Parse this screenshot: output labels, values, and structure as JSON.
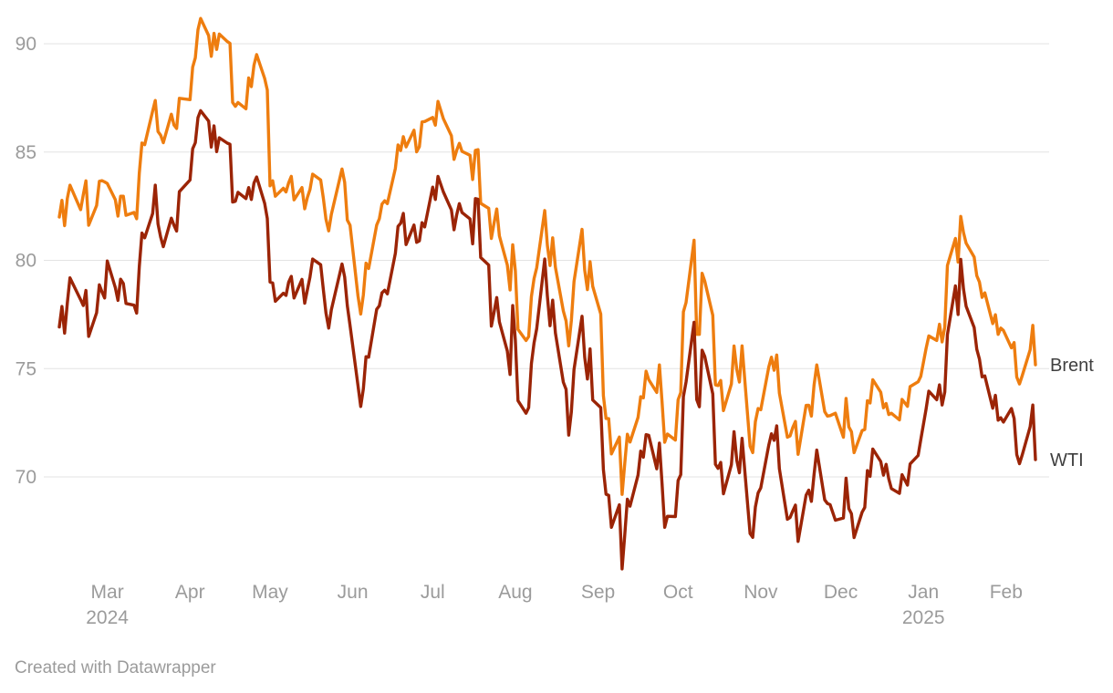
{
  "chart_data": {
    "type": "line",
    "title": "",
    "xlabel": "",
    "ylabel": "",
    "grid": "horizontal",
    "legend_position": "right-of-line-ends",
    "y_ticks": [
      70,
      75,
      80,
      85,
      90
    ],
    "ylim": [
      65.5,
      91.5
    ],
    "x_tick_labels": [
      {
        "label": "Mar",
        "sub": "2024",
        "date": "2024-03-01"
      },
      {
        "label": "Apr",
        "date": "2024-04-01"
      },
      {
        "label": "May",
        "date": "2024-05-01"
      },
      {
        "label": "Jun",
        "date": "2024-06-01"
      },
      {
        "label": "Jul",
        "date": "2024-07-01"
      },
      {
        "label": "Aug",
        "date": "2024-08-01"
      },
      {
        "label": "Sep",
        "date": "2024-09-01"
      },
      {
        "label": "Oct",
        "date": "2024-10-01"
      },
      {
        "label": "Nov",
        "date": "2024-11-01"
      },
      {
        "label": "Dec",
        "date": "2024-12-01"
      },
      {
        "label": "Jan",
        "sub": "2025",
        "date": "2025-01-01"
      },
      {
        "label": "Feb",
        "date": "2025-02-01"
      }
    ],
    "series": [
      {
        "name": "Brent",
        "color": "#ee7d0f",
        "column": 1
      },
      {
        "name": "WTI",
        "color": "#9b2406",
        "column": 2
      }
    ],
    "columns": [
      "date",
      "Brent",
      "WTI"
    ],
    "rows": [
      [
        "2024-02-12",
        82.0,
        76.92
      ],
      [
        "2024-02-13",
        82.77,
        77.87
      ],
      [
        "2024-02-14",
        81.6,
        76.64
      ],
      [
        "2024-02-15",
        82.86,
        78.03
      ],
      [
        "2024-02-16",
        83.47,
        79.19
      ],
      [
        "2024-02-20",
        82.34,
        78.18
      ],
      [
        "2024-02-21",
        83.03,
        77.91
      ],
      [
        "2024-02-22",
        83.67,
        78.61
      ],
      [
        "2024-02-23",
        81.62,
        76.49
      ],
      [
        "2024-02-26",
        82.53,
        77.58
      ],
      [
        "2024-02-27",
        83.65,
        78.87
      ],
      [
        "2024-02-28",
        83.68,
        78.54
      ],
      [
        "2024-02-29",
        83.62,
        78.26
      ],
      [
        "2024-03-01",
        83.55,
        79.97
      ],
      [
        "2024-03-04",
        82.8,
        78.74
      ],
      [
        "2024-03-05",
        82.04,
        78.15
      ],
      [
        "2024-03-06",
        82.96,
        79.13
      ],
      [
        "2024-03-07",
        82.96,
        78.93
      ],
      [
        "2024-03-08",
        82.08,
        78.01
      ],
      [
        "2024-03-11",
        82.21,
        77.93
      ],
      [
        "2024-03-12",
        81.92,
        77.56
      ],
      [
        "2024-03-13",
        84.03,
        79.72
      ],
      [
        "2024-03-14",
        85.42,
        81.26
      ],
      [
        "2024-03-15",
        85.34,
        81.04
      ],
      [
        "2024-03-18",
        86.89,
        82.16
      ],
      [
        "2024-03-19",
        87.38,
        83.47
      ],
      [
        "2024-03-20",
        85.95,
        81.68
      ],
      [
        "2024-03-21",
        85.78,
        81.07
      ],
      [
        "2024-03-22",
        85.43,
        80.63
      ],
      [
        "2024-03-25",
        86.75,
        81.95
      ],
      [
        "2024-03-26",
        86.25,
        81.62
      ],
      [
        "2024-03-27",
        86.09,
        81.35
      ],
      [
        "2024-03-28",
        87.48,
        83.17
      ],
      [
        "2024-04-01",
        87.42,
        83.71
      ],
      [
        "2024-04-02",
        88.92,
        85.15
      ],
      [
        "2024-04-03",
        89.35,
        85.43
      ],
      [
        "2024-04-04",
        90.65,
        86.59
      ],
      [
        "2024-04-05",
        91.17,
        86.91
      ],
      [
        "2024-04-08",
        90.38,
        86.43
      ],
      [
        "2024-04-09",
        89.42,
        85.23
      ],
      [
        "2024-04-10",
        90.48,
        86.21
      ],
      [
        "2024-04-11",
        89.74,
        85.02
      ],
      [
        "2024-04-12",
        90.45,
        85.66
      ],
      [
        "2024-04-15",
        90.1,
        85.41
      ],
      [
        "2024-04-16",
        90.02,
        85.36
      ],
      [
        "2024-04-17",
        87.29,
        82.69
      ],
      [
        "2024-04-18",
        87.11,
        82.73
      ],
      [
        "2024-04-19",
        87.29,
        83.14
      ],
      [
        "2024-04-22",
        87.0,
        82.85
      ],
      [
        "2024-04-23",
        88.42,
        83.36
      ],
      [
        "2024-04-24",
        88.02,
        82.81
      ],
      [
        "2024-04-25",
        89.01,
        83.57
      ],
      [
        "2024-04-26",
        89.5,
        83.85
      ],
      [
        "2024-04-29",
        88.4,
        82.63
      ],
      [
        "2024-04-30",
        87.86,
        81.93
      ],
      [
        "2024-05-01",
        83.44,
        79.0
      ],
      [
        "2024-05-02",
        83.67,
        78.95
      ],
      [
        "2024-05-03",
        82.96,
        78.11
      ],
      [
        "2024-05-06",
        83.33,
        78.48
      ],
      [
        "2024-05-07",
        83.16,
        78.38
      ],
      [
        "2024-05-08",
        83.58,
        78.99
      ],
      [
        "2024-05-09",
        83.88,
        79.26
      ],
      [
        "2024-05-10",
        82.79,
        78.26
      ],
      [
        "2024-05-13",
        83.36,
        79.12
      ],
      [
        "2024-05-14",
        82.38,
        78.02
      ],
      [
        "2024-05-15",
        82.9,
        78.63
      ],
      [
        "2024-05-16",
        83.27,
        79.23
      ],
      [
        "2024-05-17",
        83.98,
        80.06
      ],
      [
        "2024-05-20",
        83.71,
        79.8
      ],
      [
        "2024-05-21",
        82.88,
        78.66
      ],
      [
        "2024-05-22",
        81.9,
        77.57
      ],
      [
        "2024-05-23",
        81.36,
        76.87
      ],
      [
        "2024-05-24",
        82.12,
        77.72
      ],
      [
        "2024-05-28",
        84.22,
        79.83
      ],
      [
        "2024-05-29",
        83.6,
        79.23
      ],
      [
        "2024-05-30",
        81.86,
        77.91
      ],
      [
        "2024-05-31",
        81.62,
        76.99
      ],
      [
        "2024-06-03",
        78.36,
        74.22
      ],
      [
        "2024-06-04",
        77.52,
        73.25
      ],
      [
        "2024-06-05",
        78.41,
        74.07
      ],
      [
        "2024-06-06",
        79.87,
        75.55
      ],
      [
        "2024-06-07",
        79.62,
        75.53
      ],
      [
        "2024-06-10",
        81.63,
        77.74
      ],
      [
        "2024-06-11",
        81.92,
        77.9
      ],
      [
        "2024-06-12",
        82.6,
        78.5
      ],
      [
        "2024-06-13",
        82.75,
        78.62
      ],
      [
        "2024-06-14",
        82.62,
        78.45
      ],
      [
        "2024-06-17",
        84.25,
        80.33
      ],
      [
        "2024-06-18",
        85.33,
        81.57
      ],
      [
        "2024-06-19",
        85.07,
        81.71
      ],
      [
        "2024-06-20",
        85.71,
        82.17
      ],
      [
        "2024-06-21",
        85.24,
        80.73
      ],
      [
        "2024-06-24",
        86.01,
        81.63
      ],
      [
        "2024-06-25",
        85.01,
        80.83
      ],
      [
        "2024-06-26",
        85.25,
        80.9
      ],
      [
        "2024-06-27",
        86.39,
        81.74
      ],
      [
        "2024-06-28",
        86.41,
        81.54
      ],
      [
        "2024-07-01",
        86.6,
        83.38
      ],
      [
        "2024-07-02",
        86.24,
        82.81
      ],
      [
        "2024-07-03",
        87.34,
        83.88
      ],
      [
        "2024-07-05",
        86.54,
        83.16
      ],
      [
        "2024-07-08",
        85.75,
        82.33
      ],
      [
        "2024-07-09",
        84.66,
        81.41
      ],
      [
        "2024-07-10",
        85.08,
        82.1
      ],
      [
        "2024-07-11",
        85.4,
        82.62
      ],
      [
        "2024-07-12",
        85.03,
        82.21
      ],
      [
        "2024-07-15",
        84.85,
        81.91
      ],
      [
        "2024-07-16",
        83.73,
        80.76
      ],
      [
        "2024-07-17",
        85.08,
        82.85
      ],
      [
        "2024-07-18",
        85.11,
        82.82
      ],
      [
        "2024-07-19",
        82.63,
        80.13
      ],
      [
        "2024-07-22",
        82.4,
        79.78
      ],
      [
        "2024-07-23",
        81.01,
        76.96
      ],
      [
        "2024-07-24",
        81.71,
        77.59
      ],
      [
        "2024-07-25",
        82.37,
        78.28
      ],
      [
        "2024-07-26",
        81.13,
        77.16
      ],
      [
        "2024-07-29",
        79.78,
        75.81
      ],
      [
        "2024-07-30",
        78.63,
        74.73
      ],
      [
        "2024-07-31",
        80.72,
        77.91
      ],
      [
        "2024-08-01",
        79.52,
        76.31
      ],
      [
        "2024-08-02",
        76.81,
        73.52
      ],
      [
        "2024-08-05",
        76.3,
        72.94
      ],
      [
        "2024-08-06",
        76.48,
        73.2
      ],
      [
        "2024-08-07",
        78.33,
        75.23
      ],
      [
        "2024-08-08",
        79.16,
        76.19
      ],
      [
        "2024-08-09",
        79.66,
        76.84
      ],
      [
        "2024-08-12",
        82.3,
        80.06
      ],
      [
        "2024-08-13",
        80.69,
        78.35
      ],
      [
        "2024-08-14",
        79.76,
        76.98
      ],
      [
        "2024-08-15",
        81.04,
        78.16
      ],
      [
        "2024-08-16",
        79.68,
        76.65
      ],
      [
        "2024-08-19",
        77.66,
        74.37
      ],
      [
        "2024-08-20",
        77.2,
        74.04
      ],
      [
        "2024-08-21",
        76.05,
        71.93
      ],
      [
        "2024-08-22",
        77.22,
        73.01
      ],
      [
        "2024-08-23",
        79.02,
        74.96
      ],
      [
        "2024-08-26",
        81.43,
        77.42
      ],
      [
        "2024-08-27",
        79.55,
        75.53
      ],
      [
        "2024-08-28",
        78.65,
        74.52
      ],
      [
        "2024-08-29",
        79.94,
        75.91
      ],
      [
        "2024-08-30",
        78.8,
        73.55
      ],
      [
        "2024-09-02",
        77.52,
        73.2
      ],
      [
        "2024-09-03",
        73.75,
        70.34
      ],
      [
        "2024-09-04",
        72.7,
        69.2
      ],
      [
        "2024-09-05",
        72.69,
        69.15
      ],
      [
        "2024-09-06",
        71.06,
        67.67
      ],
      [
        "2024-09-09",
        71.84,
        68.71
      ],
      [
        "2024-09-10",
        69.19,
        65.75
      ],
      [
        "2024-09-11",
        70.61,
        67.31
      ],
      [
        "2024-09-12",
        71.97,
        68.97
      ],
      [
        "2024-09-13",
        71.61,
        68.65
      ],
      [
        "2024-09-16",
        72.75,
        70.09
      ],
      [
        "2024-09-17",
        73.7,
        71.19
      ],
      [
        "2024-09-18",
        73.65,
        70.91
      ],
      [
        "2024-09-19",
        74.88,
        71.95
      ],
      [
        "2024-09-20",
        74.49,
        71.92
      ],
      [
        "2024-09-23",
        73.9,
        70.37
      ],
      [
        "2024-09-24",
        75.17,
        71.56
      ],
      [
        "2024-09-25",
        73.46,
        69.69
      ],
      [
        "2024-09-26",
        71.6,
        67.67
      ],
      [
        "2024-09-27",
        71.98,
        68.18
      ],
      [
        "2024-09-30",
        71.7,
        68.17
      ],
      [
        "2024-10-01",
        73.56,
        69.83
      ],
      [
        "2024-10-02",
        73.9,
        70.1
      ],
      [
        "2024-10-03",
        77.62,
        73.71
      ],
      [
        "2024-10-04",
        78.05,
        74.38
      ],
      [
        "2024-10-07",
        80.93,
        77.14
      ],
      [
        "2024-10-08",
        76.58,
        73.57
      ],
      [
        "2024-10-09",
        76.58,
        73.24
      ],
      [
        "2024-10-10",
        79.4,
        75.85
      ],
      [
        "2024-10-11",
        79.04,
        75.56
      ],
      [
        "2024-10-14",
        77.46,
        73.83
      ],
      [
        "2024-10-15",
        74.25,
        70.58
      ],
      [
        "2024-10-16",
        74.22,
        70.39
      ],
      [
        "2024-10-17",
        74.45,
        70.67
      ],
      [
        "2024-10-18",
        73.06,
        69.22
      ],
      [
        "2024-10-21",
        74.29,
        70.56
      ],
      [
        "2024-10-22",
        76.04,
        72.09
      ],
      [
        "2024-10-23",
        74.96,
        70.77
      ],
      [
        "2024-10-24",
        74.38,
        70.19
      ],
      [
        "2024-10-25",
        76.05,
        71.78
      ],
      [
        "2024-10-28",
        71.42,
        67.38
      ],
      [
        "2024-10-29",
        71.12,
        67.21
      ],
      [
        "2024-10-30",
        72.55,
        68.61
      ],
      [
        "2024-10-31",
        73.16,
        69.26
      ],
      [
        "2024-11-01",
        73.1,
        69.49
      ],
      [
        "2024-11-04",
        75.08,
        71.47
      ],
      [
        "2024-11-05",
        75.53,
        71.99
      ],
      [
        "2024-11-06",
        74.92,
        71.69
      ],
      [
        "2024-11-07",
        75.63,
        72.36
      ],
      [
        "2024-11-08",
        73.87,
        70.38
      ],
      [
        "2024-11-11",
        71.83,
        68.04
      ],
      [
        "2024-11-12",
        71.89,
        68.12
      ],
      [
        "2024-11-13",
        72.28,
        68.43
      ],
      [
        "2024-11-14",
        72.56,
        68.7
      ],
      [
        "2024-11-15",
        71.04,
        67.02
      ],
      [
        "2024-11-18",
        73.3,
        69.16
      ],
      [
        "2024-11-19",
        73.31,
        69.39
      ],
      [
        "2024-11-20",
        72.81,
        68.87
      ],
      [
        "2024-11-21",
        74.23,
        70.1
      ],
      [
        "2024-11-22",
        75.17,
        71.24
      ],
      [
        "2024-11-25",
        73.01,
        68.94
      ],
      [
        "2024-11-26",
        72.81,
        68.77
      ],
      [
        "2024-11-27",
        72.83,
        68.72
      ],
      [
        "2024-11-29",
        72.94,
        68.0
      ],
      [
        "2024-12-02",
        71.83,
        68.1
      ],
      [
        "2024-12-03",
        73.62,
        69.94
      ],
      [
        "2024-12-04",
        72.31,
        68.54
      ],
      [
        "2024-12-05",
        72.09,
        68.3
      ],
      [
        "2024-12-06",
        71.12,
        67.2
      ],
      [
        "2024-12-09",
        72.14,
        68.37
      ],
      [
        "2024-12-10",
        72.19,
        68.59
      ],
      [
        "2024-12-11",
        73.52,
        70.29
      ],
      [
        "2024-12-12",
        73.41,
        70.02
      ],
      [
        "2024-12-13",
        74.49,
        71.29
      ],
      [
        "2024-12-16",
        73.91,
        70.71
      ],
      [
        "2024-12-17",
        73.19,
        70.08
      ],
      [
        "2024-12-18",
        73.39,
        70.58
      ],
      [
        "2024-12-19",
        72.88,
        69.91
      ],
      [
        "2024-12-20",
        72.94,
        69.46
      ],
      [
        "2024-12-23",
        72.63,
        69.24
      ],
      [
        "2024-12-24",
        73.58,
        70.1
      ],
      [
        "2024-12-26",
        73.26,
        69.62
      ],
      [
        "2024-12-27",
        74.17,
        70.6
      ],
      [
        "2024-12-30",
        74.39,
        70.99
      ],
      [
        "2024-12-31",
        74.64,
        71.72
      ],
      [
        "2025-01-02",
        75.93,
        73.13
      ],
      [
        "2025-01-03",
        76.51,
        73.96
      ],
      [
        "2025-01-06",
        76.3,
        73.56
      ],
      [
        "2025-01-07",
        77.05,
        74.25
      ],
      [
        "2025-01-08",
        76.23,
        73.32
      ],
      [
        "2025-01-09",
        76.92,
        73.92
      ],
      [
        "2025-01-10",
        79.76,
        76.57
      ],
      [
        "2025-01-13",
        81.01,
        78.82
      ],
      [
        "2025-01-14",
        79.92,
        77.5
      ],
      [
        "2025-01-15",
        82.03,
        80.04
      ],
      [
        "2025-01-16",
        81.29,
        78.68
      ],
      [
        "2025-01-17",
        80.79,
        77.88
      ],
      [
        "2025-01-20",
        80.15,
        76.9
      ],
      [
        "2025-01-21",
        79.29,
        75.89
      ],
      [
        "2025-01-22",
        79.0,
        75.44
      ],
      [
        "2025-01-23",
        78.29,
        74.62
      ],
      [
        "2025-01-24",
        78.5,
        74.66
      ],
      [
        "2025-01-27",
        77.08,
        73.17
      ],
      [
        "2025-01-28",
        77.49,
        73.77
      ],
      [
        "2025-01-29",
        76.58,
        72.62
      ],
      [
        "2025-01-30",
        76.87,
        72.73
      ],
      [
        "2025-01-31",
        76.76,
        72.53
      ],
      [
        "2025-02-03",
        75.96,
        73.16
      ],
      [
        "2025-02-04",
        76.2,
        72.7
      ],
      [
        "2025-02-05",
        74.61,
        71.03
      ],
      [
        "2025-02-06",
        74.29,
        70.61
      ],
      [
        "2025-02-07",
        74.66,
        71.0
      ],
      [
        "2025-02-10",
        75.87,
        72.32
      ],
      [
        "2025-02-11",
        77.0,
        73.32
      ],
      [
        "2025-02-12",
        75.18,
        70.8
      ]
    ]
  },
  "colors": {
    "background": "#ffffff",
    "grid": "#e3e3e3",
    "axis_text": "#9b9b9b",
    "legend_text": "#3f3f3f",
    "brent": "#ee7d0f",
    "wti": "#9b2406"
  },
  "footer": {
    "text": "Created with Datawrapper"
  }
}
